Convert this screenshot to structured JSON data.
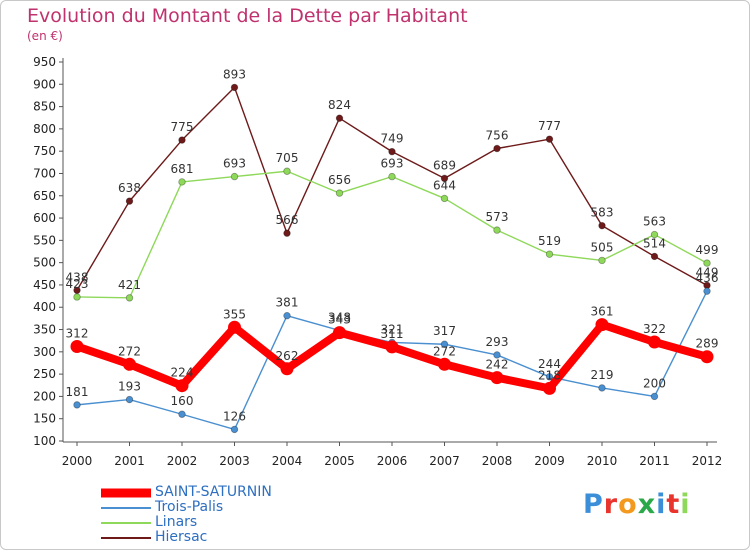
{
  "title": "Evolution du Montant de la Dette par Habitant",
  "unit": "(en €)",
  "logo": "Proxiti",
  "chart_data": {
    "type": "line",
    "title": "Evolution du Montant de la Dette par Habitant",
    "ylabel": "(en €)",
    "x": [
      "2000",
      "2001",
      "2002",
      "2003",
      "2004",
      "2005",
      "2006",
      "2007",
      "2008",
      "2009",
      "2010",
      "2011",
      "2012"
    ],
    "ylim": [
      100,
      950
    ],
    "yticks": [
      100,
      150,
      200,
      250,
      300,
      350,
      400,
      450,
      500,
      550,
      600,
      650,
      700,
      750,
      800,
      850,
      900,
      950
    ],
    "grid": false,
    "legend_position": "bottom-left",
    "series": [
      {
        "name": "SAINT-SATURNIN",
        "color": "#ff0000",
        "values": [
          312,
          272,
          224,
          355,
          262,
          343,
          311,
          272,
          242,
          218,
          361,
          322,
          289
        ]
      },
      {
        "name": "Trois-Palis",
        "color": "#4a8fd0",
        "values": [
          181,
          193,
          160,
          126,
          381,
          348,
          321,
          317,
          293,
          244,
          219,
          200,
          436
        ]
      },
      {
        "name": "Linars",
        "color": "#8ed85a",
        "values": [
          423,
          421,
          681,
          693,
          705,
          656,
          693,
          644,
          573,
          519,
          505,
          563,
          499
        ]
      },
      {
        "name": "Hiersac",
        "color": "#6e1a1a",
        "values": [
          438,
          638,
          775,
          893,
          566,
          824,
          749,
          689,
          756,
          777,
          583,
          514,
          449
        ]
      }
    ]
  }
}
